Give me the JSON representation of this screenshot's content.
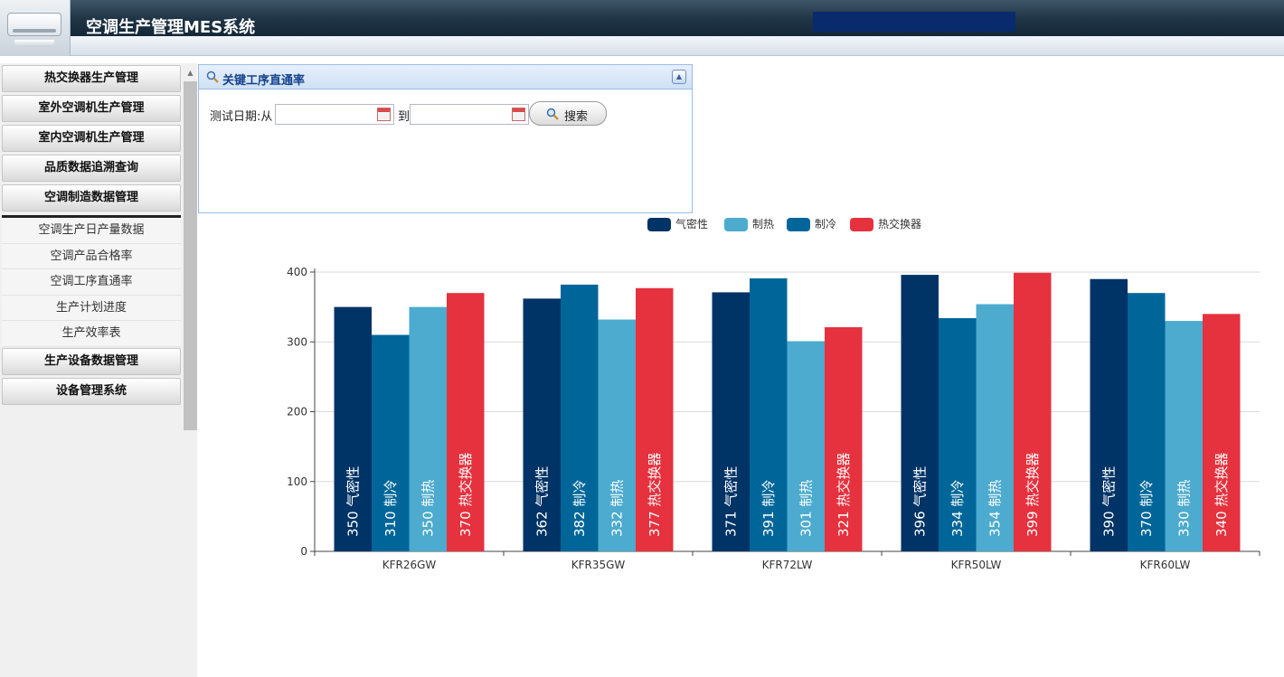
{
  "app": {
    "title": "空调生产管理MES系统"
  },
  "sidebar": {
    "menu_top": [
      "热交换器生产管理",
      "室外空调机生产管理",
      "室内空调机生产管理",
      "品质数据追溯查询",
      "空调制造数据管理"
    ],
    "submenu": [
      "空调生产日产量数据",
      "空调产品合格率",
      "空调工序直通率",
      "生产计划进度",
      "生产效率表"
    ],
    "menu_bottom": [
      "生产设备数据管理",
      "设备管理系统"
    ]
  },
  "panel": {
    "title": "关键工序直通率",
    "date_label": "测试日期:从",
    "date_from": "",
    "to_label": "到",
    "date_to": "",
    "search_label": "搜索"
  },
  "colors": {
    "header_dark": "#1e3344",
    "user_box": "#0a2a6e",
    "panel_border": "#99bce8"
  },
  "chart_data": {
    "type": "bar",
    "title": "",
    "xlabel": "",
    "ylabel": "",
    "ylim": [
      0,
      400
    ],
    "yticks": [
      0,
      100,
      200,
      300,
      400
    ],
    "grid": true,
    "legend_position": "top-center",
    "categories": [
      "KFR26GW",
      "KFR35GW",
      "KFR72LW",
      "KFR50LW",
      "KFR60LW"
    ],
    "legend": [
      {
        "name": "气密性",
        "color": "#003366"
      },
      {
        "name": "制热",
        "color": "#4cabce"
      },
      {
        "name": "制冷",
        "color": "#006699"
      },
      {
        "name": "热交换器",
        "color": "#e5323e"
      }
    ],
    "series": [
      {
        "name": "气密性",
        "color": "#003366",
        "values": [
          350,
          362,
          371,
          396,
          390
        ]
      },
      {
        "name": "制冷",
        "color": "#006699",
        "values": [
          310,
          382,
          391,
          334,
          370
        ]
      },
      {
        "name": "制热",
        "color": "#4cabce",
        "values": [
          350,
          332,
          301,
          354,
          330
        ]
      },
      {
        "name": "热交换器",
        "color": "#e5323e",
        "values": [
          370,
          377,
          321,
          399,
          340
        ]
      }
    ]
  }
}
